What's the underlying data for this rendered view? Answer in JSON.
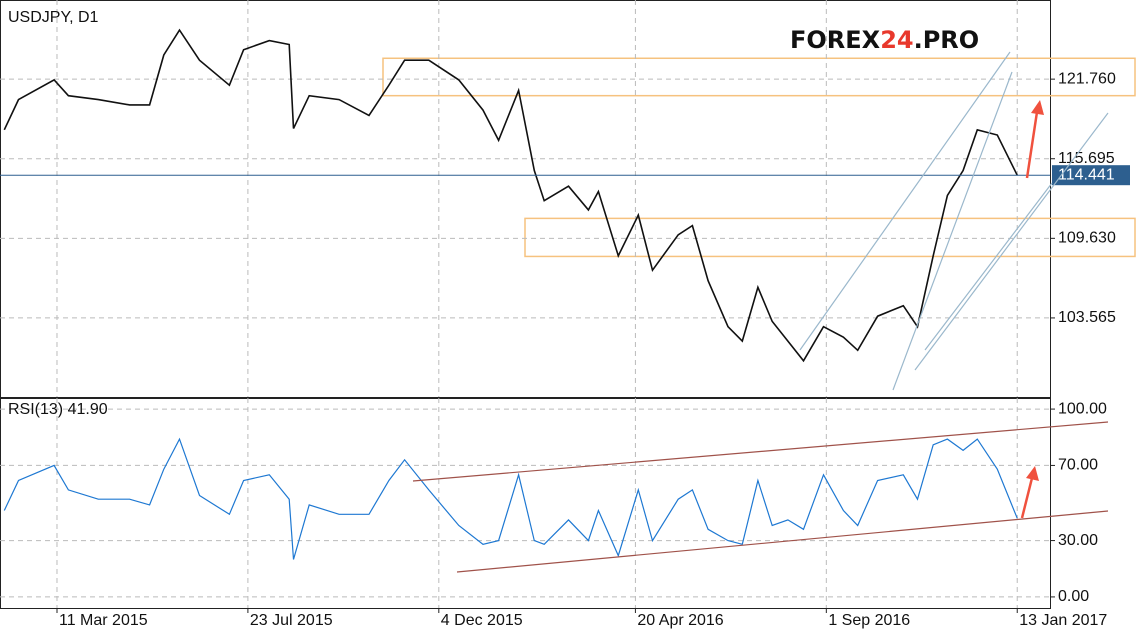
{
  "chart_data": [
    {
      "type": "line",
      "title": "USDJPY, D1",
      "logo": [
        "FOREX",
        "24",
        ".PRO"
      ],
      "x": [
        "2015-02-02",
        "2015-02-12",
        "2015-03-09",
        "2015-03-19",
        "2015-04-09",
        "2015-05-01",
        "2015-05-15",
        "2015-05-25",
        "2015-06-05",
        "2015-06-19",
        "2015-07-10",
        "2015-07-20",
        "2015-08-07",
        "2015-08-21",
        "2015-08-24",
        "2015-09-04",
        "2015-09-25",
        "2015-10-16",
        "2015-10-30",
        "2015-11-10",
        "2015-11-27",
        "2015-12-18",
        "2016-01-04",
        "2016-01-15",
        "2016-01-29",
        "2016-02-09",
        "2016-02-16",
        "2016-03-04",
        "2016-03-18",
        "2016-03-25",
        "2016-04-08",
        "2016-04-22",
        "2016-05-02",
        "2016-05-20",
        "2016-05-30",
        "2016-06-10",
        "2016-06-24",
        "2016-07-04",
        "2016-07-15",
        "2016-07-25",
        "2016-08-05",
        "2016-08-16",
        "2016-08-30",
        "2016-09-13",
        "2016-09-23",
        "2016-10-07",
        "2016-10-25",
        "2016-11-04",
        "2016-11-15",
        "2016-11-25",
        "2016-12-06",
        "2016-12-16",
        "2016-12-30",
        "2017-01-13"
      ],
      "values": [
        117.9,
        120.2,
        121.7,
        120.5,
        120.2,
        119.8,
        119.8,
        123.6,
        125.5,
        123.2,
        121.3,
        124.0,
        124.7,
        124.4,
        118.0,
        120.5,
        120.2,
        119.0,
        121.3,
        123.2,
        123.2,
        121.7,
        119.4,
        117.1,
        120.9,
        114.8,
        112.5,
        113.6,
        111.8,
        113.2,
        108.3,
        111.4,
        107.2,
        109.9,
        110.6,
        106.4,
        102.9,
        101.8,
        105.9,
        103.3,
        101.8,
        100.3,
        102.9,
        102.1,
        101.1,
        103.7,
        104.5,
        102.9,
        108.3,
        112.9,
        114.8,
        117.9,
        117.5,
        114.441
      ],
      "color": "#111111",
      "last_price": 114.441,
      "last_color": "#2d5f8f",
      "zones": [
        [
          120.5,
          123.35
        ],
        [
          108.25,
          111.15
        ]
      ],
      "zone_color": "#f6c27f",
      "xlim": [
        "2015-01-30",
        "2017-02-05"
      ],
      "ylim": [
        97.54,
        127.79
      ],
      "yticks": [
        {
          "value": 121.76,
          "label": "121.760"
        },
        115.695,
        {
          "value": 109.63,
          "label": "109.630"
        },
        103.565
      ],
      "grid": true
    },
    {
      "type": "line",
      "title": "RSI(13) 41.90",
      "x": [
        "2015-02-02",
        "2015-02-12",
        "2015-03-09",
        "2015-03-19",
        "2015-04-09",
        "2015-05-01",
        "2015-05-15",
        "2015-05-25",
        "2015-06-05",
        "2015-06-19",
        "2015-07-10",
        "2015-07-20",
        "2015-08-07",
        "2015-08-21",
        "2015-08-24",
        "2015-09-04",
        "2015-09-25",
        "2015-10-16",
        "2015-10-30",
        "2015-11-10",
        "2015-11-27",
        "2015-12-18",
        "2016-01-04",
        "2016-01-15",
        "2016-01-29",
        "2016-02-09",
        "2016-02-16",
        "2016-03-04",
        "2016-03-18",
        "2016-03-25",
        "2016-04-08",
        "2016-04-22",
        "2016-05-02",
        "2016-05-20",
        "2016-05-30",
        "2016-06-10",
        "2016-06-24",
        "2016-07-04",
        "2016-07-15",
        "2016-07-25",
        "2016-08-05",
        "2016-08-16",
        "2016-08-30",
        "2016-09-13",
        "2016-09-23",
        "2016-10-07",
        "2016-10-25",
        "2016-11-04",
        "2016-11-15",
        "2016-11-25",
        "2016-12-06",
        "2016-12-16",
        "2016-12-30",
        "2017-01-13"
      ],
      "values": [
        46,
        62,
        70,
        57,
        52,
        52,
        49,
        68,
        84,
        54,
        44,
        62,
        65,
        52,
        20,
        49,
        44,
        44,
        62,
        73,
        57,
        38,
        28,
        30,
        65,
        30,
        28,
        41,
        30,
        46,
        22,
        57,
        30,
        52,
        57,
        36,
        30,
        28,
        62,
        38,
        41,
        36,
        65,
        46,
        38,
        62,
        65,
        52,
        81,
        84,
        78,
        84,
        68,
        41.9
      ],
      "color": "#1e78d2",
      "xlim": [
        "2015-01-30",
        "2017-02-05"
      ],
      "xticks": [
        {
          "value": "2015-03-11",
          "label": "11 Mar 2015"
        },
        {
          "value": "2015-07-23",
          "label": "23 Jul 2015"
        },
        {
          "value": "2015-12-04",
          "label": "4 Dec 2015"
        },
        {
          "value": "2016-04-20",
          "label": "20 Apr 2016"
        },
        {
          "value": "2016-09-01",
          "label": "1 Sep 2016"
        },
        {
          "value": "2017-01-13",
          "label": "13 Jan 2017"
        }
      ],
      "ylim": [
        -5.9,
        105.9
      ],
      "yticks": [
        {
          "value": 100,
          "label": "100.00"
        },
        {
          "value": 70,
          "label": "70.00"
        },
        {
          "value": 30,
          "label": "30.00"
        },
        {
          "value": 0,
          "label": "0.00"
        }
      ],
      "grid": true
    }
  ]
}
